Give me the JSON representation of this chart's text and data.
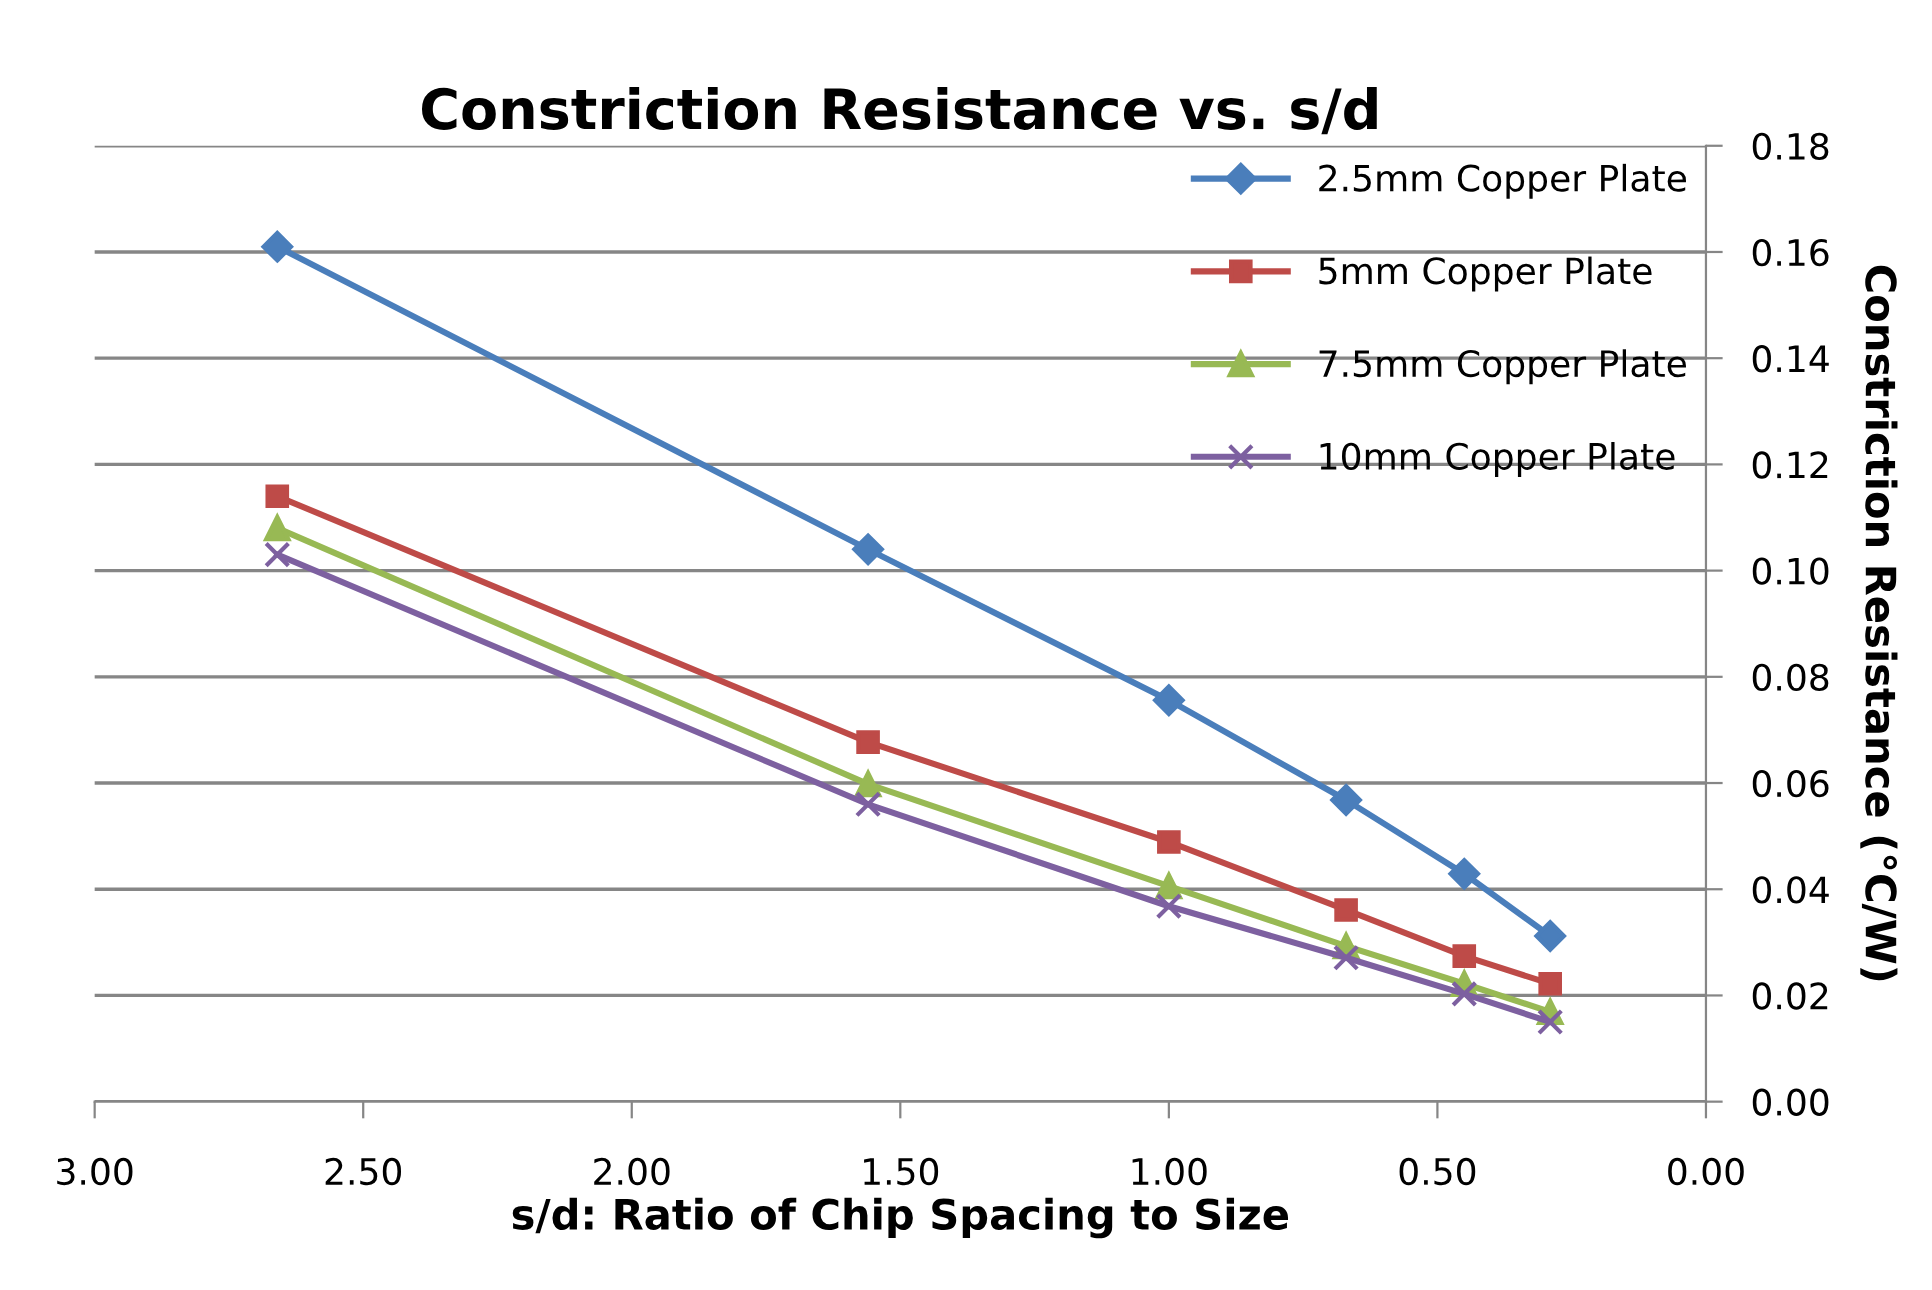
{
  "chart_data": {
    "type": "line",
    "title": "Constriction Resistance vs. s/d",
    "xlabel": "s/d: Ratio of Chip Spacing to Size",
    "ylabel": "Constriction Resistance (°C/W)",
    "x": [
      2.66,
      1.56,
      1.0,
      0.67,
      0.45,
      0.29
    ],
    "series": [
      {
        "name": "2.5mm Copper Plate",
        "color": "#4a7ebb",
        "marker": "diamond",
        "values": [
          0.161,
          0.104,
          0.0756,
          0.0568,
          0.0429,
          0.0312
        ]
      },
      {
        "name": "5mm Copper Plate",
        "color": "#be4b48",
        "marker": "square",
        "values": [
          0.114,
          0.0677,
          0.0489,
          0.0361,
          0.0274,
          0.0222
        ]
      },
      {
        "name": "7.5mm Copper Plate",
        "color": "#98b954",
        "marker": "triangle",
        "values": [
          0.108,
          0.0598,
          0.0406,
          0.0293,
          0.0222,
          0.0169
        ]
      },
      {
        "name": "10mm Copper Plate",
        "color": "#7d60a0",
        "marker": "cross",
        "values": [
          0.103,
          0.056,
          0.0368,
          0.0271,
          0.0203,
          0.015
        ]
      }
    ],
    "xlim": [
      3.0,
      0.0
    ],
    "xticks": [
      {
        "value": 3.0,
        "label": "3.00"
      },
      {
        "value": 2.5,
        "label": "2.50"
      },
      {
        "value": 2.0,
        "label": "2.00"
      },
      {
        "value": 1.5,
        "label": "1.50"
      },
      {
        "value": 1.0,
        "label": "1.00"
      },
      {
        "value": 0.5,
        "label": "0.50"
      },
      {
        "value": 0.0,
        "label": "0.00"
      }
    ],
    "ylim": [
      0.0,
      0.18
    ],
    "yticks": [
      {
        "value": 0.0,
        "label": "0.00"
      },
      {
        "value": 0.02,
        "label": "0.02"
      },
      {
        "value": 0.04,
        "label": "0.04"
      },
      {
        "value": 0.06,
        "label": "0.06"
      },
      {
        "value": 0.08,
        "label": "0.08"
      },
      {
        "value": 0.1,
        "label": "0.10"
      },
      {
        "value": 0.12,
        "label": "0.12"
      },
      {
        "value": 0.14,
        "label": "0.14"
      },
      {
        "value": 0.16,
        "label": "0.16"
      },
      {
        "value": 0.18,
        "label": "0.18"
      }
    ],
    "grid": "y",
    "legend": "top right",
    "line_style": "solid"
  }
}
